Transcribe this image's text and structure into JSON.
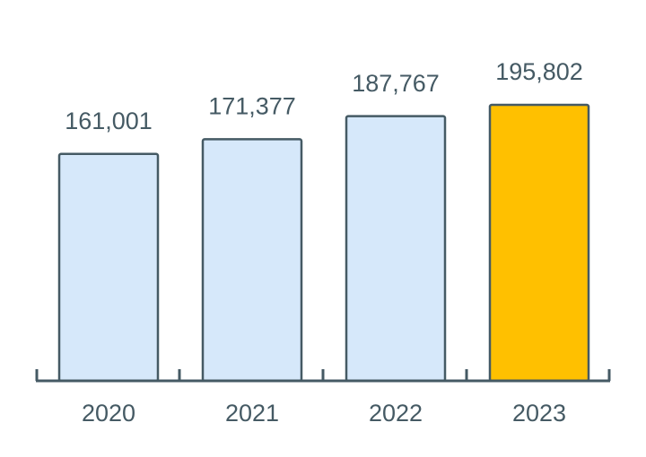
{
  "chart_data": {
    "type": "bar",
    "categories": [
      "2020",
      "2021",
      "2022",
      "2023"
    ],
    "values": [
      161001,
      171377,
      187767,
      195802
    ],
    "value_labels": [
      "161,001",
      "171,377",
      "187,767",
      "195,802"
    ],
    "colors": [
      "#d6e8fa",
      "#d6e8fa",
      "#d6e8fa",
      "#ffc000"
    ]
  }
}
